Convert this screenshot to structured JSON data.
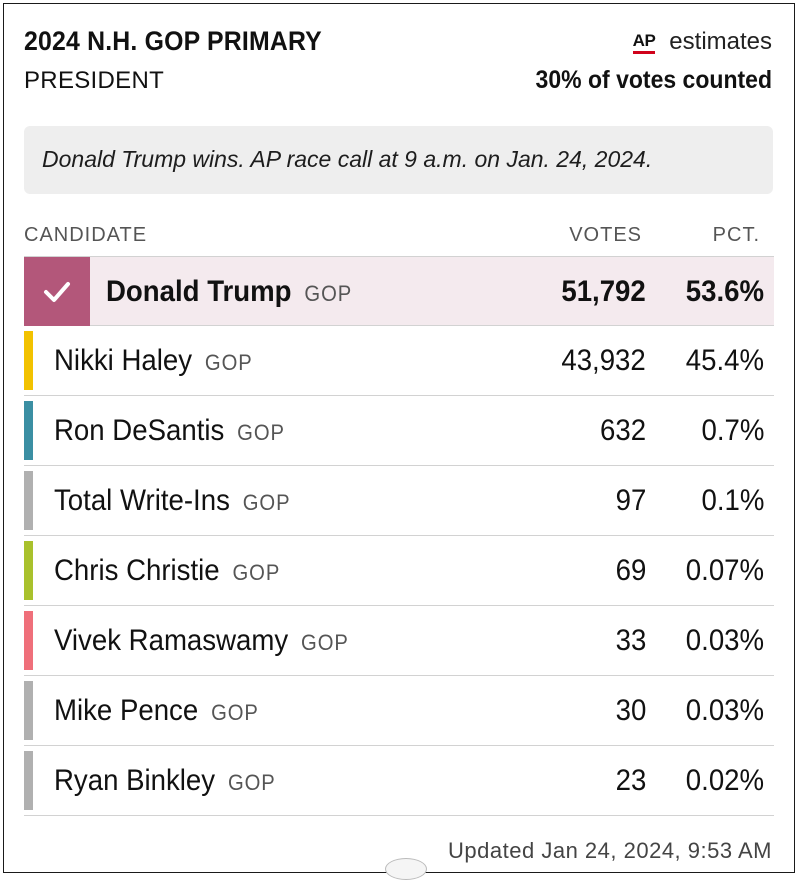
{
  "header": {
    "title": "2024 N.H. GOP PRIMARY",
    "office": "PRESIDENT",
    "ap_logo": "AP",
    "estimates_label": "estimates",
    "counted": "30% of votes counted"
  },
  "notice": "Donald Trump wins. AP race call at 9 a.m. on Jan. 24, 2024.",
  "columns": {
    "candidate": "CANDIDATE",
    "votes": "VOTES",
    "pct": "PCT."
  },
  "candidates": [
    {
      "name": "Donald Trump",
      "party": "GOP",
      "votes": "51,792",
      "pct": "53.6%",
      "winner": true,
      "color": "#b3577a"
    },
    {
      "name": "Nikki Haley",
      "party": "GOP",
      "votes": "43,932",
      "pct": "45.4%",
      "color": "#f2c200"
    },
    {
      "name": "Ron DeSantis",
      "party": "GOP",
      "votes": "632",
      "pct": "0.7%",
      "color": "#3b8fa3"
    },
    {
      "name": "Total Write-Ins",
      "party": "GOP",
      "votes": "97",
      "pct": "0.1%",
      "color": "#b0b0b0"
    },
    {
      "name": "Chris Christie",
      "party": "GOP",
      "votes": "69",
      "pct": "0.07%",
      "color": "#a9c12c"
    },
    {
      "name": "Vivek Ramaswamy",
      "party": "GOP",
      "votes": "33",
      "pct": "0.03%",
      "color": "#ef6f7a"
    },
    {
      "name": "Mike Pence",
      "party": "GOP",
      "votes": "30",
      "pct": "0.03%",
      "color": "#b0b0b0"
    },
    {
      "name": "Ryan Binkley",
      "party": "GOP",
      "votes": "23",
      "pct": "0.02%",
      "color": "#b0b0b0"
    }
  ],
  "icons": {
    "winner": "checkmark-icon"
  },
  "updated": "Updated Jan 24, 2024, 9:53 AM"
}
